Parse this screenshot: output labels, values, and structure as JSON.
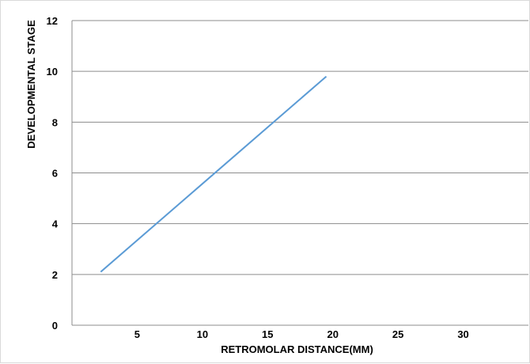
{
  "chart_data": {
    "type": "line",
    "title": "",
    "xlabel": "RETROMOLAR DISTANCE(MM)",
    "ylabel": "DEVELOPMENTAL STAGE",
    "xlim": [
      0,
      35
    ],
    "ylim": [
      0,
      12
    ],
    "x_ticks": [
      "5",
      "10",
      "15",
      "20",
      "25",
      "30"
    ],
    "y_ticks": [
      "0",
      "2",
      "4",
      "6",
      "8",
      "10",
      "12"
    ],
    "grid": "horizontal",
    "legend": "none",
    "series": [
      {
        "color": "#5b9bd5",
        "x": [
          2.2,
          19.5
        ],
        "y": [
          2.1,
          9.8
        ]
      }
    ]
  }
}
